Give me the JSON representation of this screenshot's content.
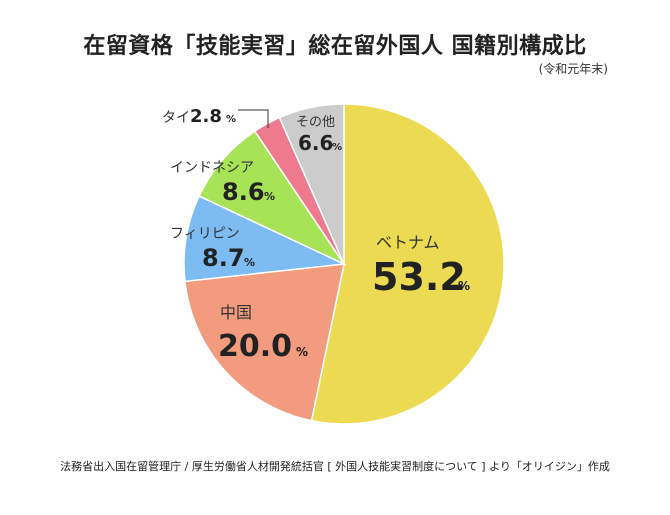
{
  "chart_data": {
    "type": "pie",
    "title": "在留資格「技能実習」総在留外国人 国籍別構成比",
    "subtitle": "(令和元年末)",
    "unit": "%",
    "slices": [
      {
        "label": "ベトナム",
        "value": 53.2,
        "value_text": "53.2",
        "color": "#ecdb52"
      },
      {
        "label": "中国",
        "value": 20.0,
        "value_text": "20.0",
        "color": "#f29b7e"
      },
      {
        "label": "フィリピン",
        "value": 8.7,
        "value_text": "8.7",
        "color": "#7cbcf2"
      },
      {
        "label": "インドネシア",
        "value": 8.6,
        "value_text": "8.6",
        "color": "#a6e356"
      },
      {
        "label": "タイ",
        "value": 2.8,
        "value_text": "2.8",
        "color": "#ef7a8d"
      },
      {
        "label": "その他",
        "value": 6.6,
        "value_text": "6.6",
        "color": "#cccccc"
      }
    ],
    "source": "法務省出入国在留管理庁 / 厚生労働省人材開発統括官 [ 外国人技能実習制度について ] より「オリイジン」作成"
  }
}
